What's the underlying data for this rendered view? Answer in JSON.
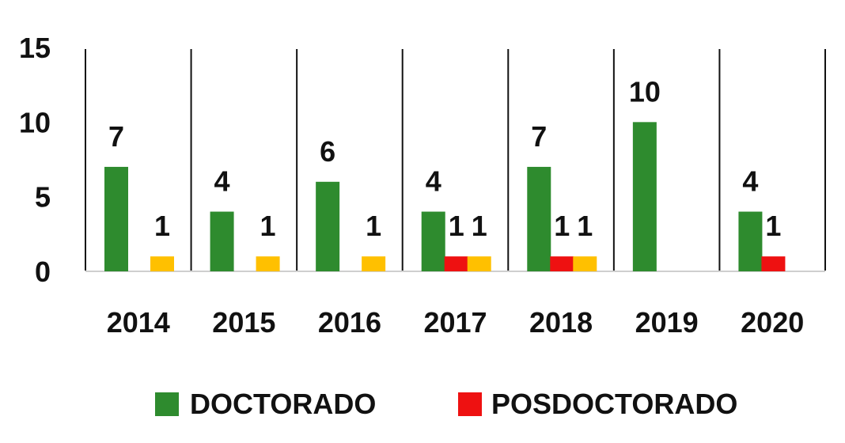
{
  "chart_data": {
    "type": "bar",
    "categories": [
      "2014",
      "2015",
      "2016",
      "2017",
      "2018",
      "2019",
      "2020"
    ],
    "series": [
      {
        "name": "DOCTORADO",
        "color": "#2e8b2e",
        "values": [
          7,
          4,
          6,
          4,
          7,
          10,
          4
        ],
        "legend": true
      },
      {
        "name": "POSDOCTORADO",
        "color": "#ee1111",
        "values": [
          0,
          0,
          0,
          1,
          1,
          0,
          1
        ],
        "legend": true
      },
      {
        "name": "",
        "color": "#ffc000",
        "values": [
          1,
          1,
          1,
          1,
          1,
          0,
          0
        ],
        "legend": false
      }
    ],
    "data_labels": [
      [
        "7",
        "4",
        "6",
        "4",
        "7",
        "10",
        "4"
      ],
      [
        "",
        "",
        "",
        "1",
        "1",
        "",
        "1"
      ],
      [
        "1",
        "1",
        "1",
        "1",
        "1",
        "",
        ""
      ]
    ],
    "yticks": [
      "0",
      "5",
      "10",
      "15"
    ],
    "ylim": [
      0,
      15
    ],
    "grid": false,
    "category_separators": true,
    "legend_position": "bottom"
  }
}
